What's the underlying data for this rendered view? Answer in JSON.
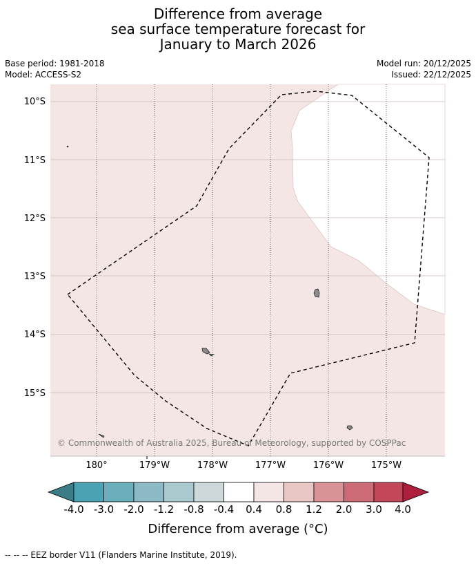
{
  "title": {
    "line1": "Difference from average",
    "line2": "sea surface temperature forecast for",
    "line3": "January to March 2026"
  },
  "meta_left": {
    "base_period": "Base period: 1981-2018",
    "model": "Model: ACCESS-S2"
  },
  "meta_right": {
    "model_run": "Model run: 20/12/2025",
    "issued": "Issued: 22/12/2025"
  },
  "map": {
    "lat_labels": [
      "10°S",
      "11°S",
      "12°S",
      "13°S",
      "14°S",
      "15°S"
    ],
    "lon_labels": [
      "180°",
      "179°W",
      "178°W",
      "177°W",
      "176°W",
      "175°W"
    ],
    "copyright": "© Commonwealth of Australia 2025, Bureau of Meteorology, supported by COSPPac",
    "colors": {
      "ocean_anomaly": "#f4e6e5",
      "neutral": "#ffffff",
      "land": "#8c8c8c",
      "eez": "#000000"
    }
  },
  "colorbar": {
    "ticks": [
      "-4.0",
      "-3.0",
      "-2.0",
      "-1.2",
      "-0.8",
      "-0.4",
      "0.4",
      "0.8",
      "1.2",
      "2.0",
      "3.0",
      "4.0"
    ],
    "colors": [
      "#3a7d86",
      "#4aa3b3",
      "#6aafbb",
      "#8cbbc7",
      "#a9c9ce",
      "#cdd8da",
      "#ffffff",
      "#f4e6e5",
      "#e8c7c5",
      "#d89298",
      "#cc6a75",
      "#c24758",
      "#ad1f3c"
    ],
    "label": "Difference from average ($^\\circ$C)",
    "label_text": "Difference from average (",
    "label_unit": "°C)"
  },
  "footer": {
    "legend_text": "-- -- -- EEZ border V11 (Flanders Marine Institute, 2019)."
  }
}
